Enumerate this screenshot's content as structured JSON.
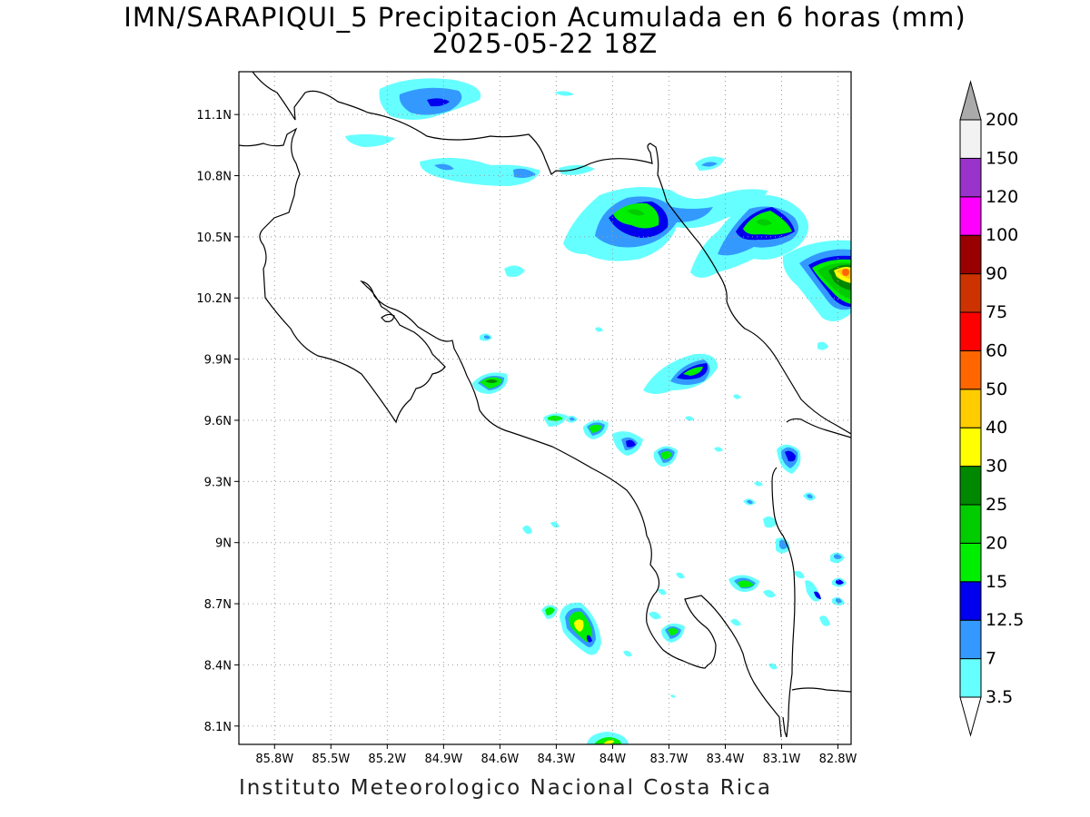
{
  "title_line1": "IMN/SARAPIQUI_5 Precipitacion Acumulada en 6 horas (mm)",
  "title_line2": "2025-05-22 18Z",
  "footer": "Instituto Meteorologico Nacional Costa Rica",
  "map": {
    "lon_range": [
      -85.99,
      -82.73
    ],
    "lat_range": [
      8.01,
      11.31
    ],
    "lon_tick_labels": [
      "85.8W",
      "85.5W",
      "85.2W",
      "84.9W",
      "84.6W",
      "84.3W",
      "84W",
      "83.7W",
      "83.4W",
      "83.1W",
      "82.8W"
    ],
    "lat_tick_labels": [
      "11.1N",
      "10.8N",
      "10.5N",
      "10.2N",
      "9.9N",
      "9.6N",
      "9.3N",
      "9N",
      "8.7N",
      "8.4N",
      "8.1N"
    ],
    "grid": true
  },
  "colorbar": {
    "units": "mm",
    "labels": [
      "3.5",
      "7",
      "12.5",
      "15",
      "20",
      "25",
      "30",
      "40",
      "50",
      "60",
      "75",
      "90",
      "100",
      "120",
      "150",
      "200"
    ],
    "colors": [
      "#66ffff",
      "#3399ff",
      "#0000ee",
      "#00ee00",
      "#00cc00",
      "#008800",
      "#ffff00",
      "#ffcc00",
      "#ff6600",
      "#ff0000",
      "#cc3300",
      "#990000",
      "#ff00ff",
      "#9933cc",
      "#f2f2f2",
      "#aaaaaa"
    ]
  }
}
